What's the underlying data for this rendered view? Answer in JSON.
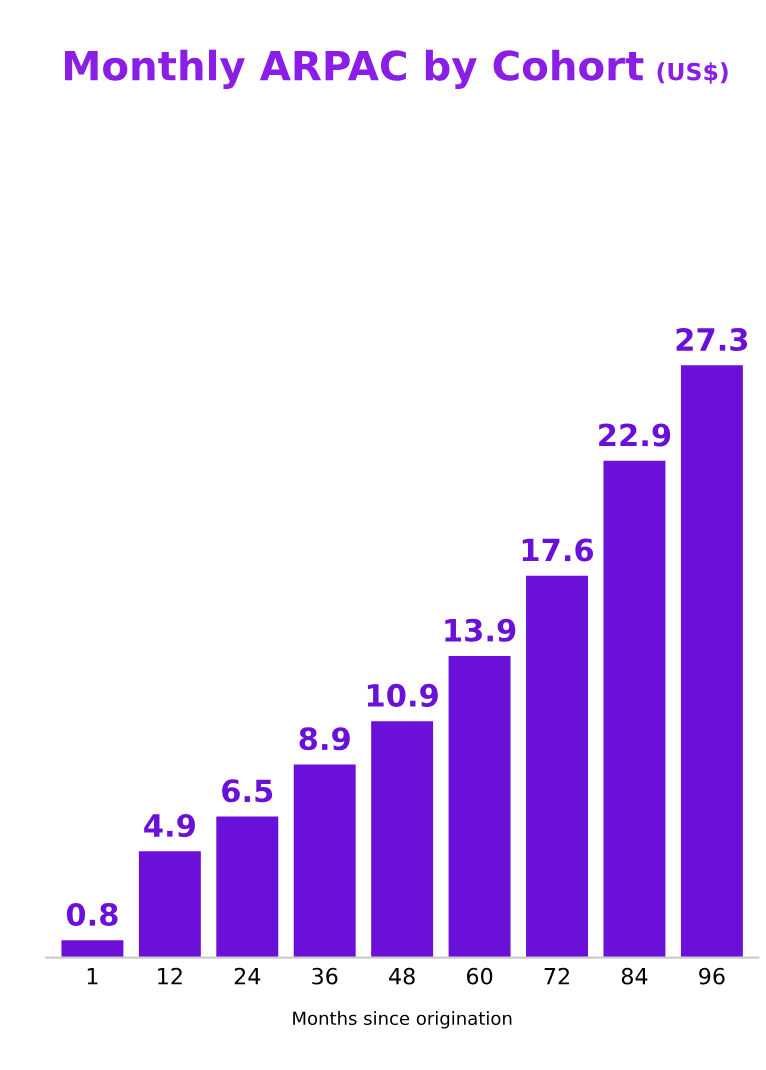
{
  "chart_data": {
    "type": "bar",
    "title": "Monthly ARPAC by Cohort",
    "subtitle": "(US$)",
    "xlabel": "Months since origination",
    "categories": [
      "1",
      "12",
      "24",
      "36",
      "48",
      "60",
      "72",
      "84",
      "96"
    ],
    "values": [
      0.8,
      4.9,
      6.5,
      8.9,
      10.9,
      13.9,
      17.6,
      22.9,
      27.3
    ],
    "color": "#6a10d8",
    "data_labels": true,
    "grid": false,
    "legend": false
  }
}
